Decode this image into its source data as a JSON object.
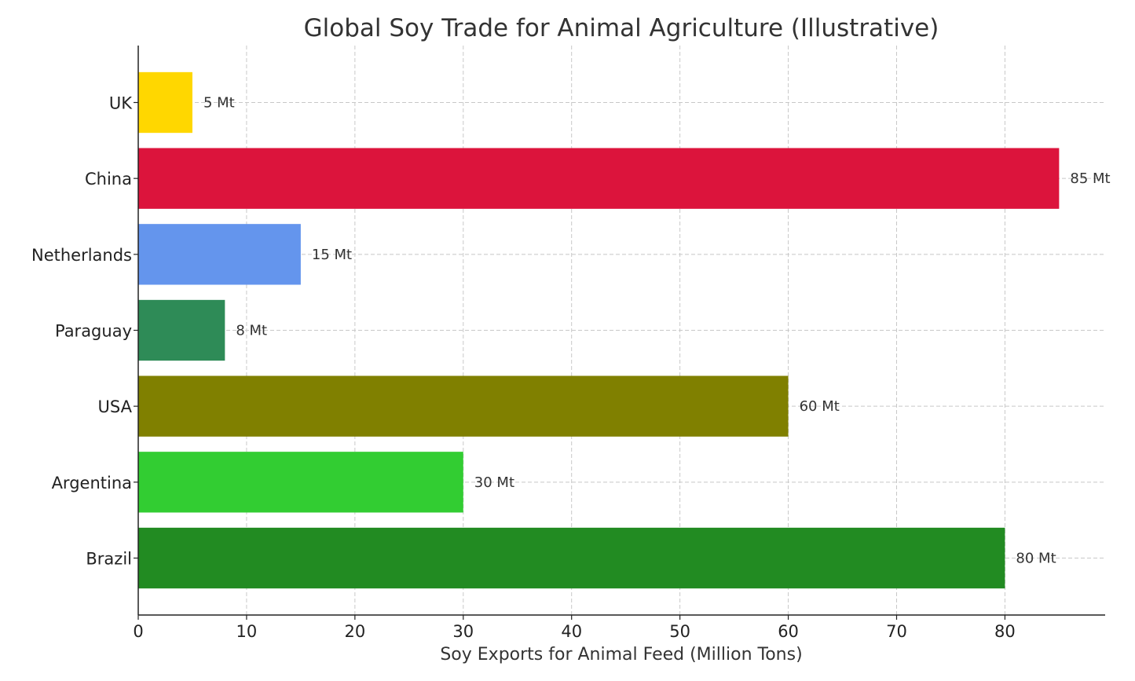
{
  "chart_data": {
    "type": "bar",
    "orientation": "horizontal",
    "title": "Global Soy Trade for Animal Agriculture (Illustrative)",
    "xlabel": "Soy Exports for Animal Feed (Million Tons)",
    "ylabel": "",
    "categories": [
      "Brazil",
      "Argentina",
      "USA",
      "Paraguay",
      "Netherlands",
      "China",
      "UK"
    ],
    "values": [
      80,
      30,
      60,
      8,
      15,
      85,
      5
    ],
    "data_labels": [
      "80 Mt",
      "30 Mt",
      "60 Mt",
      "8 Mt",
      "15 Mt",
      "85 Mt",
      "5 Mt"
    ],
    "colors": [
      "#228B22",
      "#32CD32",
      "#808000",
      "#2E8B57",
      "#6495ED",
      "#DC143C",
      "#FFD700"
    ],
    "xticks": [
      "0",
      "10",
      "20",
      "30",
      "40",
      "50",
      "60",
      "70",
      "80"
    ],
    "xlim": [
      0,
      89.25
    ],
    "grid": true,
    "legend": "none"
  }
}
